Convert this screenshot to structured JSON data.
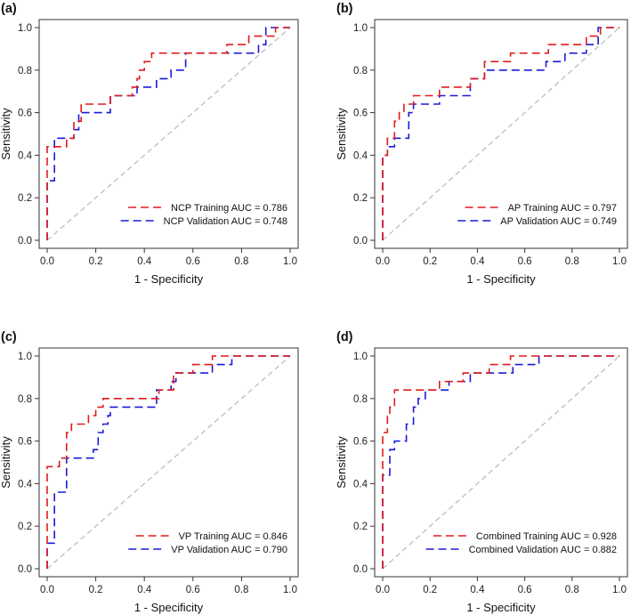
{
  "colors": {
    "training": "#e31a1c",
    "validation": "#1a1ad9",
    "diagonal": "#bdbdbd",
    "frame": "#333333"
  },
  "chart_data": [
    {
      "type": "line",
      "panel": "(a)",
      "xlabel": "1 - Specificity",
      "ylabel": "Sensitivity",
      "xlim": [
        0,
        1
      ],
      "ylim": [
        0,
        1
      ],
      "ticks": [
        "0.0",
        "0.2",
        "0.4",
        "0.6",
        "0.8",
        "1.0"
      ],
      "legend_position": "bottom-right",
      "series": [
        {
          "name": "NCP Training AUC = 0.786",
          "role": "training",
          "points": [
            [
              0,
              0
            ],
            [
              0,
              0.44
            ],
            [
              0.08,
              0.44
            ],
            [
              0.08,
              0.48
            ],
            [
              0.11,
              0.48
            ],
            [
              0.11,
              0.56
            ],
            [
              0.14,
              0.56
            ],
            [
              0.14,
              0.64
            ],
            [
              0.26,
              0.64
            ],
            [
              0.26,
              0.68
            ],
            [
              0.35,
              0.68
            ],
            [
              0.35,
              0.72
            ],
            [
              0.37,
              0.72
            ],
            [
              0.37,
              0.76
            ],
            [
              0.38,
              0.76
            ],
            [
              0.38,
              0.8
            ],
            [
              0.4,
              0.8
            ],
            [
              0.4,
              0.84
            ],
            [
              0.43,
              0.84
            ],
            [
              0.43,
              0.88
            ],
            [
              0.74,
              0.88
            ],
            [
              0.74,
              0.92
            ],
            [
              0.83,
              0.92
            ],
            [
              0.83,
              0.96
            ],
            [
              0.94,
              0.96
            ],
            [
              0.94,
              1.0
            ],
            [
              1,
              1
            ]
          ]
        },
        {
          "name": "NCP Validation AUC = 0.748",
          "role": "validation",
          "points": [
            [
              0,
              0
            ],
            [
              0,
              0.28
            ],
            [
              0.03,
              0.28
            ],
            [
              0.03,
              0.48
            ],
            [
              0.11,
              0.48
            ],
            [
              0.11,
              0.52
            ],
            [
              0.13,
              0.52
            ],
            [
              0.13,
              0.6
            ],
            [
              0.26,
              0.6
            ],
            [
              0.26,
              0.68
            ],
            [
              0.37,
              0.68
            ],
            [
              0.37,
              0.72
            ],
            [
              0.45,
              0.72
            ],
            [
              0.45,
              0.76
            ],
            [
              0.51,
              0.76
            ],
            [
              0.51,
              0.8
            ],
            [
              0.57,
              0.8
            ],
            [
              0.57,
              0.88
            ],
            [
              0.87,
              0.88
            ],
            [
              0.87,
              0.92
            ],
            [
              0.9,
              0.92
            ],
            [
              0.9,
              1.0
            ],
            [
              1,
              1
            ]
          ]
        }
      ]
    },
    {
      "type": "line",
      "panel": "(b)",
      "xlabel": "1 - Specificity",
      "ylabel": "Sensitivity",
      "xlim": [
        0,
        1
      ],
      "ylim": [
        0,
        1
      ],
      "ticks": [
        "0.0",
        "0.2",
        "0.4",
        "0.6",
        "0.8",
        "1.0"
      ],
      "legend_position": "bottom-right",
      "series": [
        {
          "name": "AP Training AUC = 0.797",
          "role": "training",
          "points": [
            [
              0,
              0
            ],
            [
              0,
              0.4
            ],
            [
              0.02,
              0.4
            ],
            [
              0.02,
              0.48
            ],
            [
              0.05,
              0.48
            ],
            [
              0.05,
              0.56
            ],
            [
              0.07,
              0.56
            ],
            [
              0.07,
              0.6
            ],
            [
              0.09,
              0.6
            ],
            [
              0.09,
              0.64
            ],
            [
              0.13,
              0.64
            ],
            [
              0.13,
              0.68
            ],
            [
              0.24,
              0.68
            ],
            [
              0.24,
              0.72
            ],
            [
              0.37,
              0.72
            ],
            [
              0.37,
              0.76
            ],
            [
              0.43,
              0.76
            ],
            [
              0.43,
              0.84
            ],
            [
              0.54,
              0.84
            ],
            [
              0.54,
              0.88
            ],
            [
              0.7,
              0.88
            ],
            [
              0.7,
              0.92
            ],
            [
              0.86,
              0.92
            ],
            [
              0.86,
              0.96
            ],
            [
              0.92,
              0.96
            ],
            [
              0.92,
              1.0
            ],
            [
              1,
              1
            ]
          ]
        },
        {
          "name": "AP Validation AUC = 0.749",
          "role": "validation",
          "points": [
            [
              0,
              0
            ],
            [
              0,
              0.4
            ],
            [
              0.02,
              0.4
            ],
            [
              0.02,
              0.44
            ],
            [
              0.05,
              0.44
            ],
            [
              0.05,
              0.48
            ],
            [
              0.11,
              0.48
            ],
            [
              0.11,
              0.6
            ],
            [
              0.13,
              0.6
            ],
            [
              0.13,
              0.64
            ],
            [
              0.24,
              0.64
            ],
            [
              0.24,
              0.68
            ],
            [
              0.37,
              0.68
            ],
            [
              0.37,
              0.76
            ],
            [
              0.43,
              0.76
            ],
            [
              0.43,
              0.8
            ],
            [
              0.69,
              0.8
            ],
            [
              0.69,
              0.84
            ],
            [
              0.77,
              0.84
            ],
            [
              0.77,
              0.88
            ],
            [
              0.86,
              0.88
            ],
            [
              0.86,
              0.92
            ],
            [
              0.91,
              0.92
            ],
            [
              0.91,
              1.0
            ],
            [
              1,
              1
            ]
          ]
        }
      ]
    },
    {
      "type": "line",
      "panel": "(c)",
      "xlabel": "1 - Specificity",
      "ylabel": "Sensitivity",
      "xlim": [
        0,
        1
      ],
      "ylim": [
        0,
        1
      ],
      "ticks": [
        "0.0",
        "0.2",
        "0.4",
        "0.6",
        "0.8",
        "1.0"
      ],
      "legend_position": "bottom-right",
      "series": [
        {
          "name": "VP Training AUC = 0.846",
          "role": "training",
          "points": [
            [
              0,
              0
            ],
            [
              0,
              0.48
            ],
            [
              0.05,
              0.48
            ],
            [
              0.05,
              0.52
            ],
            [
              0.08,
              0.52
            ],
            [
              0.08,
              0.64
            ],
            [
              0.1,
              0.64
            ],
            [
              0.1,
              0.68
            ],
            [
              0.17,
              0.68
            ],
            [
              0.17,
              0.72
            ],
            [
              0.2,
              0.72
            ],
            [
              0.2,
              0.76
            ],
            [
              0.23,
              0.76
            ],
            [
              0.23,
              0.8
            ],
            [
              0.46,
              0.8
            ],
            [
              0.46,
              0.84
            ],
            [
              0.52,
              0.84
            ],
            [
              0.52,
              0.92
            ],
            [
              0.6,
              0.92
            ],
            [
              0.6,
              0.96
            ],
            [
              0.68,
              0.96
            ],
            [
              0.68,
              1.0
            ],
            [
              1,
              1
            ]
          ]
        },
        {
          "name": "VP Validation AUC = 0.790",
          "role": "validation",
          "points": [
            [
              0,
              0
            ],
            [
              0,
              0.12
            ],
            [
              0.03,
              0.12
            ],
            [
              0.03,
              0.36
            ],
            [
              0.08,
              0.36
            ],
            [
              0.08,
              0.52
            ],
            [
              0.19,
              0.52
            ],
            [
              0.19,
              0.56
            ],
            [
              0.21,
              0.56
            ],
            [
              0.21,
              0.64
            ],
            [
              0.23,
              0.64
            ],
            [
              0.23,
              0.68
            ],
            [
              0.25,
              0.68
            ],
            [
              0.25,
              0.72
            ],
            [
              0.26,
              0.72
            ],
            [
              0.26,
              0.76
            ],
            [
              0.45,
              0.76
            ],
            [
              0.45,
              0.84
            ],
            [
              0.51,
              0.84
            ],
            [
              0.51,
              0.88
            ],
            [
              0.53,
              0.88
            ],
            [
              0.53,
              0.92
            ],
            [
              0.68,
              0.92
            ],
            [
              0.68,
              0.96
            ],
            [
              0.76,
              0.96
            ],
            [
              0.76,
              1.0
            ],
            [
              1,
              1
            ]
          ]
        }
      ]
    },
    {
      "type": "line",
      "panel": "(d)",
      "xlabel": "1 - Specificity",
      "ylabel": "Sensitivity",
      "xlim": [
        0,
        1
      ],
      "ylim": [
        0,
        1
      ],
      "ticks": [
        "0.0",
        "0.2",
        "0.4",
        "0.6",
        "0.8",
        "1.0"
      ],
      "legend_position": "bottom-right",
      "series": [
        {
          "name": "Combined Training AUC = 0.928",
          "role": "training",
          "points": [
            [
              0,
              0
            ],
            [
              0,
              0.64
            ],
            [
              0.02,
              0.64
            ],
            [
              0.02,
              0.72
            ],
            [
              0.03,
              0.72
            ],
            [
              0.03,
              0.76
            ],
            [
              0.05,
              0.76
            ],
            [
              0.05,
              0.84
            ],
            [
              0.24,
              0.84
            ],
            [
              0.24,
              0.88
            ],
            [
              0.34,
              0.88
            ],
            [
              0.34,
              0.92
            ],
            [
              0.45,
              0.92
            ],
            [
              0.45,
              0.96
            ],
            [
              0.54,
              0.96
            ],
            [
              0.54,
              1.0
            ],
            [
              1,
              1
            ]
          ]
        },
        {
          "name": "Combined Validation AUC = 0.882",
          "role": "validation",
          "points": [
            [
              0,
              0
            ],
            [
              0,
              0.44
            ],
            [
              0.03,
              0.44
            ],
            [
              0.03,
              0.56
            ],
            [
              0.05,
              0.56
            ],
            [
              0.05,
              0.6
            ],
            [
              0.1,
              0.6
            ],
            [
              0.1,
              0.68
            ],
            [
              0.13,
              0.68
            ],
            [
              0.13,
              0.76
            ],
            [
              0.15,
              0.76
            ],
            [
              0.15,
              0.8
            ],
            [
              0.18,
              0.8
            ],
            [
              0.18,
              0.84
            ],
            [
              0.28,
              0.84
            ],
            [
              0.28,
              0.88
            ],
            [
              0.37,
              0.88
            ],
            [
              0.37,
              0.92
            ],
            [
              0.55,
              0.92
            ],
            [
              0.55,
              0.96
            ],
            [
              0.66,
              0.96
            ],
            [
              0.66,
              1.0
            ],
            [
              1,
              1
            ]
          ]
        }
      ]
    }
  ]
}
